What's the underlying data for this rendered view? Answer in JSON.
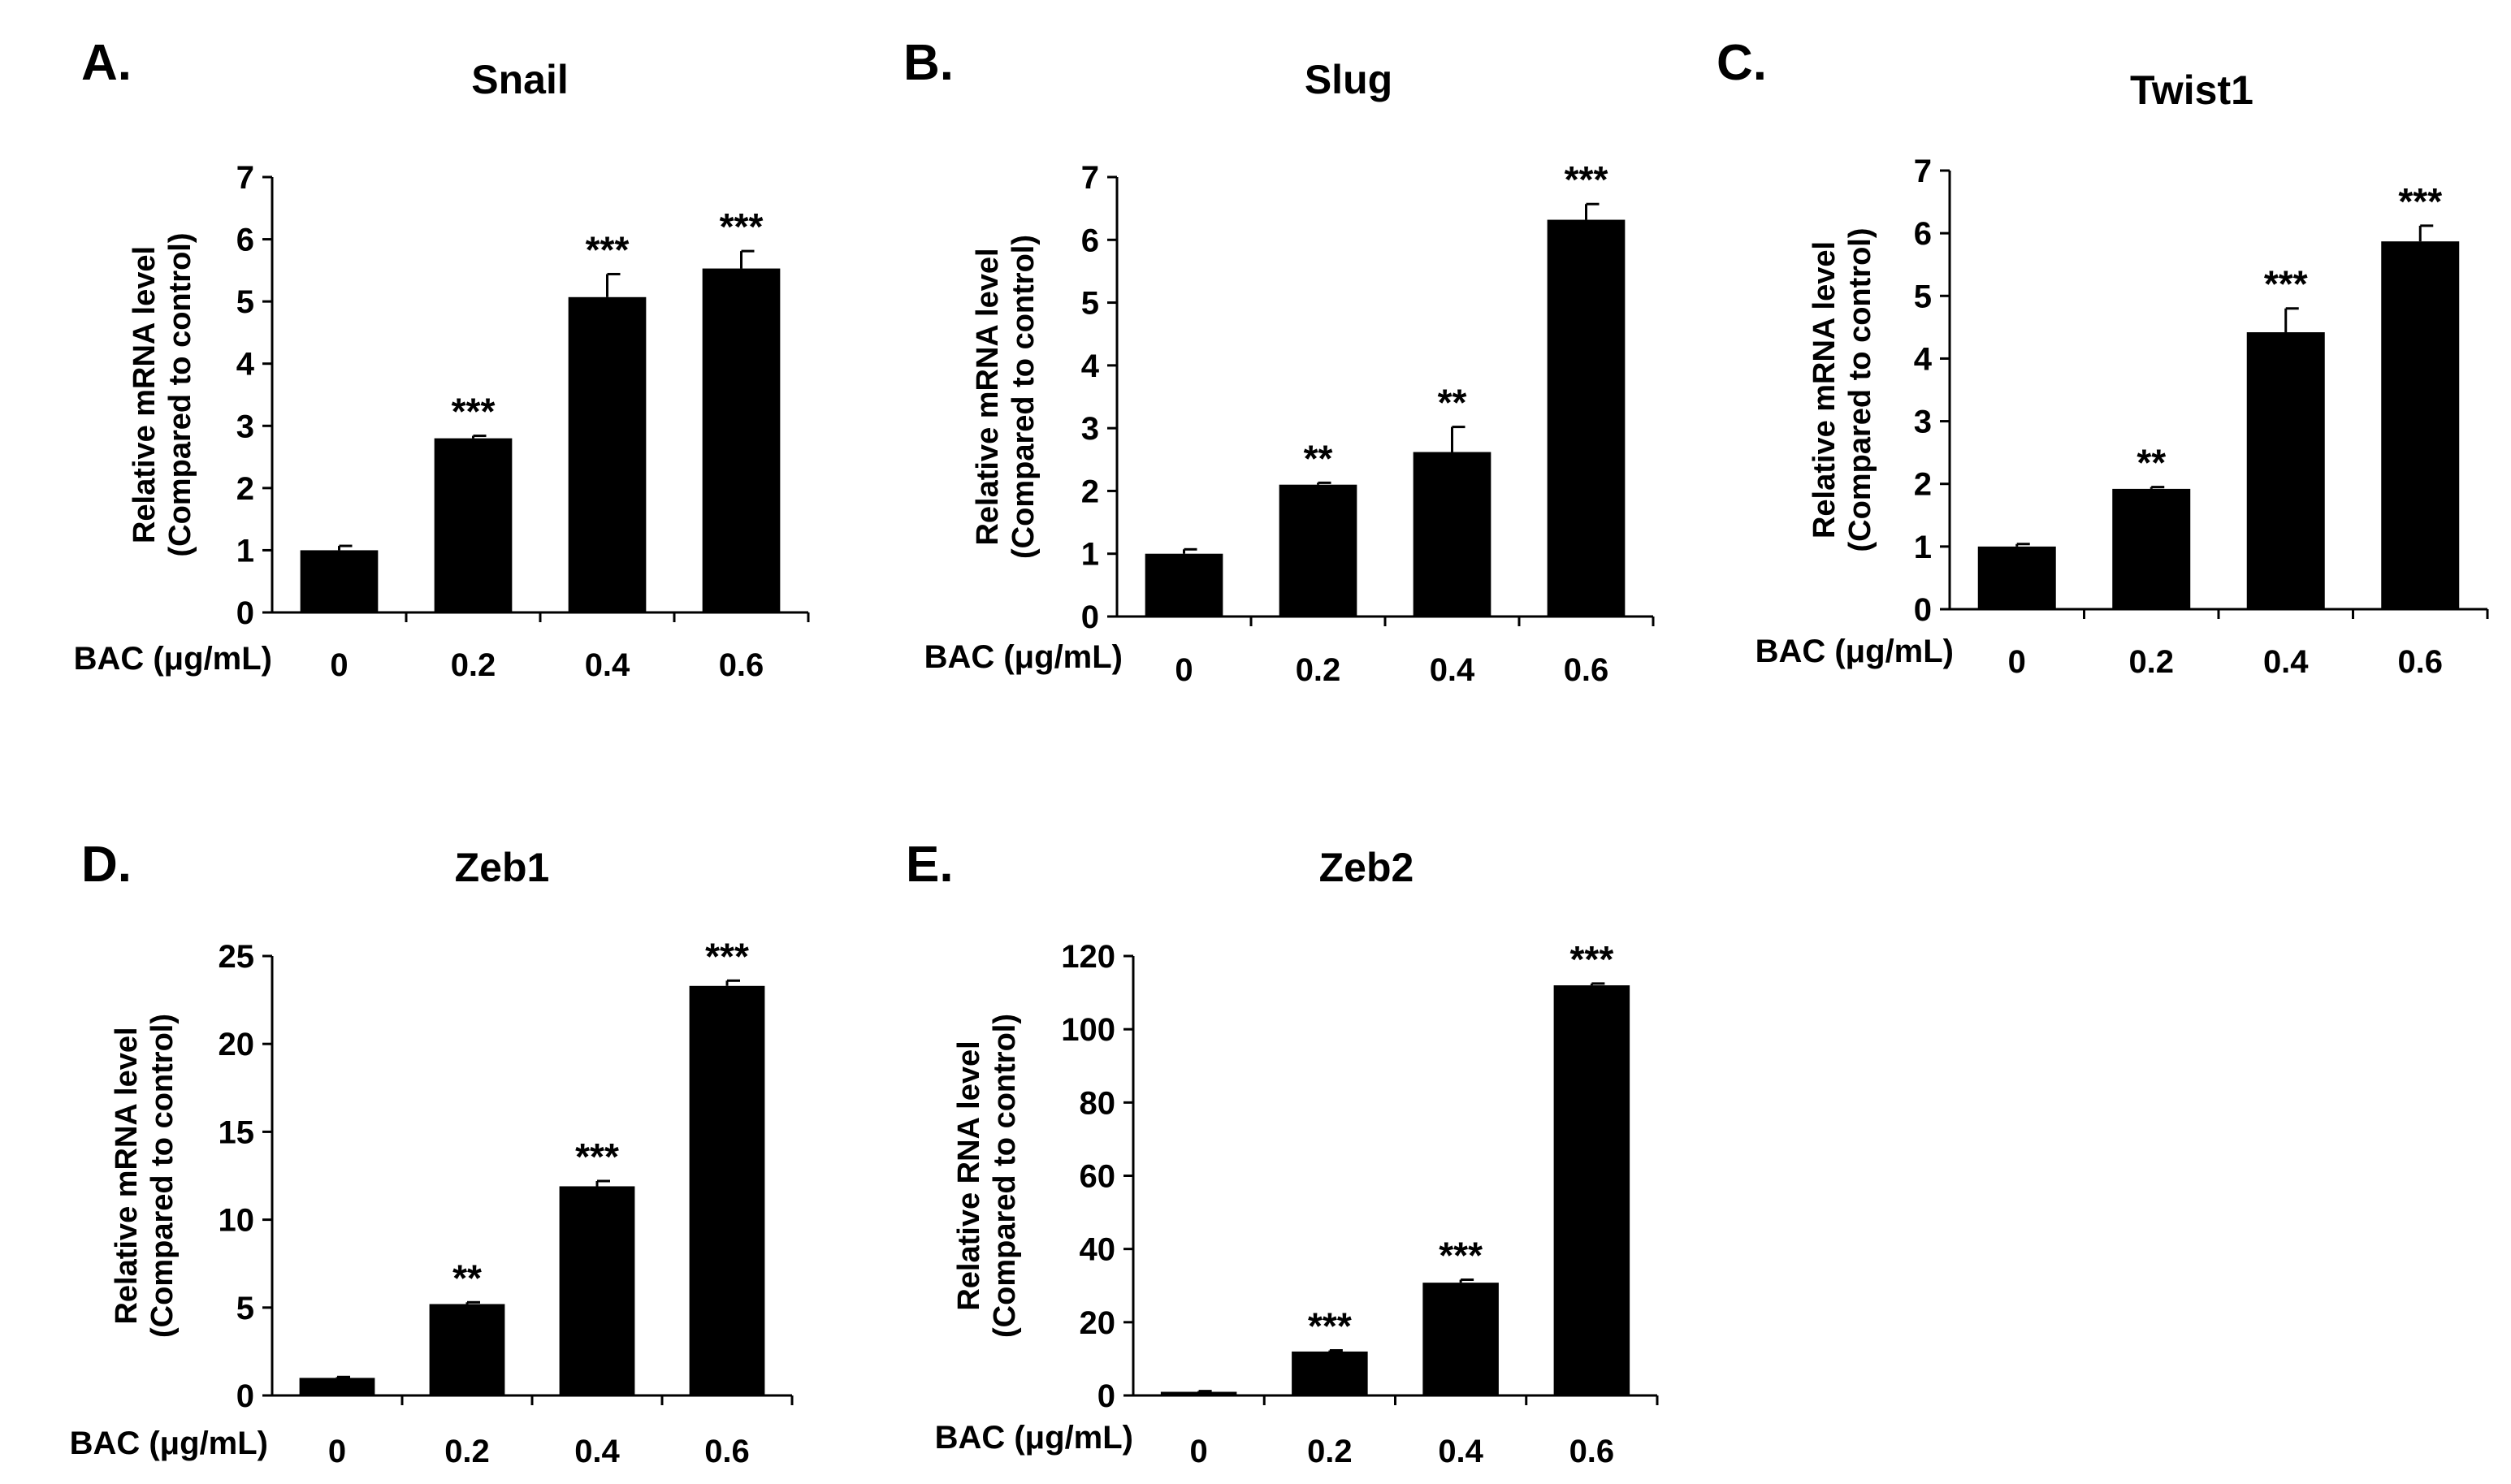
{
  "colors": {
    "bar": "#000000",
    "axis": "#000000",
    "background": "#ffffff"
  },
  "chart_data": [
    {
      "panel": "A.",
      "type": "bar",
      "title": "Snail",
      "xlabel": "BAC (μg/mL)",
      "ylabel": [
        "Relative mRNA level",
        "(Compared to control)"
      ],
      "categories": [
        "0",
        "0.2",
        "0.4",
        "0.6"
      ],
      "values": [
        1.0,
        2.8,
        5.07,
        5.53
      ],
      "errors": [
        0.07,
        0.04,
        0.37,
        0.28
      ],
      "significance": [
        "",
        "***",
        "***",
        "***"
      ],
      "ylim": [
        0,
        7
      ],
      "yticks": [
        0,
        1,
        2,
        3,
        4,
        5,
        6,
        7
      ],
      "grid": false
    },
    {
      "panel": "B.",
      "type": "bar",
      "title": "Slug",
      "xlabel": "BAC (μg/mL)",
      "ylabel": [
        "Relative mRNA level",
        "(Compared to control)"
      ],
      "categories": [
        "0",
        "0.2",
        "0.4",
        "0.6"
      ],
      "values": [
        1.0,
        2.1,
        2.62,
        6.32
      ],
      "errors": [
        0.07,
        0.03,
        0.4,
        0.25
      ],
      "significance": [
        "",
        "**",
        "**",
        "***"
      ],
      "ylim": [
        0,
        7
      ],
      "yticks": [
        0,
        1,
        2,
        3,
        4,
        5,
        6,
        7
      ],
      "grid": false
    },
    {
      "panel": "C.",
      "type": "bar",
      "title": "Twist1",
      "xlabel": "BAC (μg/mL)",
      "ylabel": [
        "Relative mRNA level",
        "(Compared to control)"
      ],
      "categories": [
        "0",
        "0.2",
        "0.4",
        "0.6"
      ],
      "values": [
        1.0,
        1.92,
        4.42,
        5.87
      ],
      "errors": [
        0.04,
        0.03,
        0.38,
        0.25
      ],
      "significance": [
        "",
        "**",
        "***",
        "***"
      ],
      "ylim": [
        0,
        7
      ],
      "yticks": [
        0,
        1,
        2,
        3,
        4,
        5,
        6,
        7
      ],
      "grid": false
    },
    {
      "panel": "D.",
      "type": "bar",
      "title": "Zeb1",
      "xlabel": "BAC (μg/mL)",
      "ylabel": [
        "Relative mRNA level",
        "(Compared to control)"
      ],
      "categories": [
        "0",
        "0.2",
        "0.4",
        "0.6"
      ],
      "values": [
        1.0,
        5.2,
        11.9,
        23.3
      ],
      "errors": [
        0.05,
        0.1,
        0.3,
        0.3
      ],
      "significance": [
        "",
        "**",
        "***",
        "***"
      ],
      "ylim": [
        0,
        25
      ],
      "yticks": [
        0,
        5,
        10,
        15,
        20,
        25
      ],
      "grid": false
    },
    {
      "panel": "E.",
      "type": "bar",
      "title": "Zeb2",
      "xlabel": "BAC (μg/mL)",
      "ylabel": [
        "Relative RNA level",
        "(Compared to control)"
      ],
      "categories": [
        "0",
        "0.2",
        "0.4",
        "0.6"
      ],
      "values": [
        1.0,
        12.0,
        30.8,
        112.0
      ],
      "errors": [
        0.2,
        0.3,
        0.8,
        0.5
      ],
      "significance": [
        "",
        "***",
        "***",
        "***"
      ],
      "ylim": [
        0,
        120
      ],
      "yticks": [
        0,
        20,
        40,
        60,
        80,
        100,
        120
      ],
      "grid": false
    }
  ]
}
